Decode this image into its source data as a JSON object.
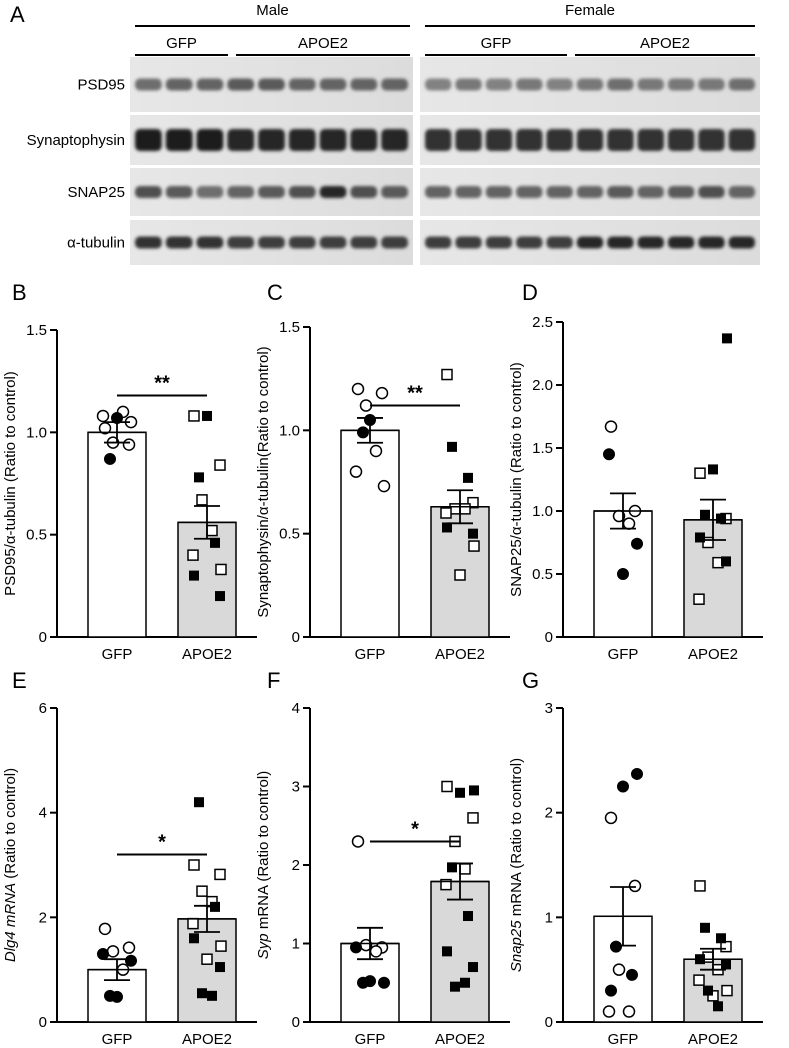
{
  "figure_letter_a": "A",
  "blot": {
    "groups": [
      {
        "sex": "Male",
        "conditions": [
          {
            "label": "GFP",
            "lanes": 3
          },
          {
            "label": "APOE2",
            "lanes": 6
          }
        ]
      },
      {
        "sex": "Female",
        "conditions": [
          {
            "label": "GFP",
            "lanes": 5
          },
          {
            "label": "APOE2",
            "lanes": 6
          }
        ]
      }
    ],
    "rows": [
      {
        "label": "PSD95"
      },
      {
        "label": "Synaptophysin"
      },
      {
        "label": "SNAP25"
      },
      {
        "label": "α-tubulin"
      }
    ]
  },
  "chart_data": [
    {
      "letter": "B",
      "type": "bar",
      "categories": [
        "GFP",
        "APOE2"
      ],
      "ylabel_pre": "PSD95/",
      "ylabel_greek": "α",
      "ylabel_post": "-tubulin (Ratio to control)",
      "ylabel_italic": false,
      "ylim": [
        0,
        1.5
      ],
      "yticks": [
        "0",
        "0.5",
        "1.0",
        "1.5"
      ],
      "ytick_values": [
        0,
        0.5,
        1.0,
        1.5
      ],
      "means": [
        1.0,
        0.56
      ],
      "sem": [
        0.05,
        0.08
      ],
      "points": [
        {
          "open": [
            1.02,
            0.94,
            0.95,
            1.1,
            1.08,
            1.05
          ],
          "filled": [
            1.07,
            0.87
          ]
        },
        {
          "open": [
            1.08,
            0.84,
            0.67,
            0.52,
            0.4,
            0.33
          ],
          "filled": [
            1.08,
            0.78,
            0.46,
            0.3,
            0.2
          ]
        }
      ],
      "significance": "**",
      "sig_y": 1.18
    },
    {
      "letter": "C",
      "type": "bar",
      "categories": [
        "GFP",
        "APOE2"
      ],
      "ylabel_pre": "Synaptophysin/",
      "ylabel_greek": "α",
      "ylabel_post": "-tubulin(Ratio to control)",
      "ylabel_italic": false,
      "ylim": [
        0,
        1.5
      ],
      "yticks": [
        "0",
        "0.5",
        "1.0",
        "1.5"
      ],
      "ytick_values": [
        0,
        0.5,
        1.0,
        1.5
      ],
      "means": [
        1.0,
        0.63
      ],
      "sem": [
        0.06,
        0.08
      ],
      "points": [
        {
          "open": [
            1.2,
            1.18,
            1.12,
            0.9,
            0.8,
            0.73
          ],
          "filled": [
            1.05,
            0.99
          ]
        },
        {
          "open": [
            1.27,
            0.65,
            0.62,
            0.62,
            0.6,
            0.44,
            0.3
          ],
          "filled": [
            0.92,
            0.77,
            0.53,
            0.5
          ]
        }
      ],
      "significance": "**",
      "sig_y": 1.12
    },
    {
      "letter": "D",
      "type": "bar",
      "categories": [
        "GFP",
        "APOE2"
      ],
      "ylabel_pre": "SNAP25/",
      "ylabel_greek": "α",
      "ylabel_post": "-tubulin (Ratio to control)",
      "ylabel_italic": false,
      "ylim": [
        0,
        2.5
      ],
      "yticks": [
        "0",
        "0.5",
        "1.0",
        "1.5",
        "2.0",
        "2.5"
      ],
      "ytick_values": [
        0,
        0.5,
        1.0,
        1.5,
        2.0,
        2.5
      ],
      "means": [
        1.0,
        0.93
      ],
      "sem": [
        0.14,
        0.16
      ],
      "points": [
        {
          "open": [
            1.67,
            1.0,
            0.96,
            0.9
          ],
          "filled": [
            1.45,
            0.74,
            0.5
          ]
        },
        {
          "open": [
            1.3,
            0.94,
            0.75,
            0.59,
            0.3
          ],
          "filled": [
            2.37,
            1.33,
            0.97,
            0.94,
            0.79,
            0.6
          ]
        }
      ],
      "significance": "",
      "sig_y": null
    },
    {
      "letter": "E",
      "type": "bar",
      "categories": [
        "GFP",
        "APOE2"
      ],
      "ylabel_pre": "Dlg4 mRNA",
      "ylabel_greek": "",
      "ylabel_post": " (Ratio to control)",
      "ylabel_italic": true,
      "ylim": [
        0,
        6
      ],
      "yticks": [
        "0",
        "2",
        "4",
        "6"
      ],
      "ytick_values": [
        0,
        2,
        4,
        6
      ],
      "means": [
        1.0,
        1.97
      ],
      "sem": [
        0.2,
        0.25
      ],
      "points": [
        {
          "open": [
            1.78,
            1.42,
            1.35,
            1.0
          ],
          "filled": [
            1.3,
            1.17,
            0.48,
            0.5
          ]
        },
        {
          "open": [
            3.0,
            2.82,
            2.5,
            2.3,
            1.88,
            1.45,
            1.2
          ],
          "filled": [
            4.2,
            2.2,
            1.6,
            1.05,
            0.55,
            0.5
          ]
        }
      ],
      "significance": "*",
      "sig_y": 3.2
    },
    {
      "letter": "F",
      "type": "bar",
      "categories": [
        "GFP",
        "APOE2"
      ],
      "ylabel_pre": "Syp",
      "ylabel_greek": "",
      "ylabel_post": " mRNA (Ratio to control)",
      "ylabel_italic": false,
      "ylim": [
        0,
        4
      ],
      "yticks": [
        "0",
        "1",
        "2",
        "3",
        "4"
      ],
      "ytick_values": [
        0,
        1,
        2,
        3,
        4
      ],
      "means": [
        1.0,
        1.79
      ],
      "sem": [
        0.2,
        0.23
      ],
      "points": [
        {
          "open": [
            2.3,
            0.95,
            0.98,
            0.9
          ],
          "filled": [
            0.95,
            0.5,
            0.52,
            0.5
          ]
        },
        {
          "open": [
            3.0,
            2.6,
            2.3,
            1.95,
            1.75
          ],
          "filled": [
            2.95,
            2.92,
            1.97,
            1.35,
            0.9,
            0.7,
            0.45,
            0.5
          ]
        }
      ],
      "significance": "*",
      "sig_y": 2.3
    },
    {
      "letter": "G",
      "type": "bar",
      "categories": [
        "GFP",
        "APOE2"
      ],
      "ylabel_pre": "Snap25",
      "ylabel_greek": "",
      "ylabel_post": " mRNA (Ratio to control)",
      "ylabel_italic": false,
      "ylim": [
        0,
        3
      ],
      "yticks": [
        "0",
        "1",
        "2",
        "3"
      ],
      "ytick_values": [
        0,
        1,
        2,
        3
      ],
      "means": [
        1.01,
        0.6
      ],
      "sem": [
        0.28,
        0.1
      ],
      "points": [
        {
          "open": [
            1.95,
            1.3,
            0.5,
            0.1,
            0.1
          ],
          "filled": [
            2.37,
            2.25,
            0.72,
            0.45,
            0.3
          ]
        },
        {
          "open": [
            1.3,
            0.72,
            0.62,
            0.5,
            0.4,
            0.3,
            0.25
          ],
          "filled": [
            0.9,
            0.8,
            0.6,
            0.55,
            0.3,
            0.15
          ]
        }
      ],
      "significance": "",
      "sig_y": null
    }
  ]
}
